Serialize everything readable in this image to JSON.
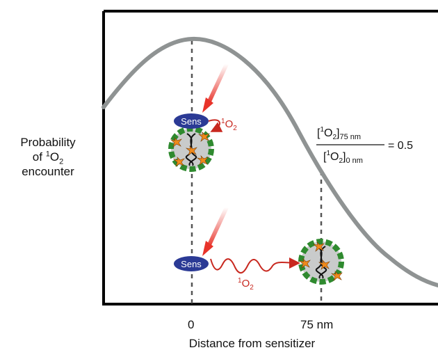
{
  "y_axis_label": {
    "line1": "Probability",
    "line2_prefix": "of ",
    "line2_sup": "1",
    "line2_main": "O",
    "line2_sub": "2",
    "line3": "encounter"
  },
  "x_axis_title": "Distance from sensitizer",
  "x_ticks": [
    "0",
    "75 nm"
  ],
  "sens_label": "Sens",
  "singlet_oxygen": {
    "sup": "1",
    "main": "O",
    "sub": "2"
  },
  "ratio": {
    "num_open": "[",
    "num_sup": "1",
    "num_main": "O",
    "num_sub2": "2",
    "num_close": "]",
    "num_sub": "75 nm",
    "den_open": "[",
    "den_sup": "1",
    "den_main": "O",
    "den_sub2": "2",
    "den_close": "]",
    "den_sub": "0 nm",
    "equals": "= 0.5"
  },
  "colors": {
    "curve": "#8f9393",
    "frame": "#000000",
    "sens_fill": "#2b3a95",
    "arrow_red": "#e8332a",
    "oxygen_red": "#c8281f",
    "protein_green": "#2f8a2f",
    "virus_gray": "#c9cbcb",
    "star_orange": "#f08a1c"
  },
  "icons": [
    "light-arrow-icon",
    "sensitizer-icon",
    "virus-particle-icon",
    "dna-helix-icon"
  ]
}
